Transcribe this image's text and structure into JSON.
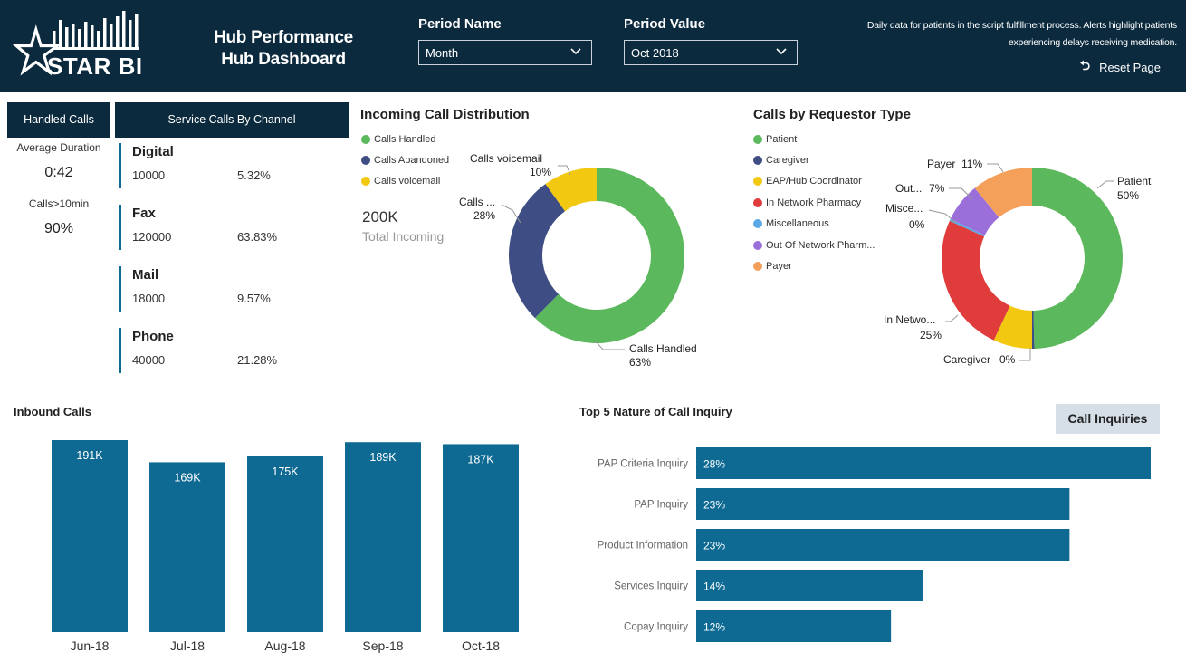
{
  "header": {
    "logo_text": "STAR BI",
    "title_line1": "Hub Performance",
    "title_line2": "Hub Dashboard",
    "period_name_label": "Period Name",
    "period_name_value": "Month",
    "period_value_label": "Period Value",
    "period_value_value": "Oct 2018",
    "note_line1": "Daily data for patients in the script fulfillment process. Alerts highlight patients",
    "note_line2": "experiencing delays receiving medication.",
    "reset_label": "Reset Page",
    "colors": {
      "bg": "#0c2a3e"
    }
  },
  "handled": {
    "title": "Handled Calls",
    "avg_label": "Average Duration",
    "avg_value": "0:42",
    "over_label": "Calls>10min",
    "over_value": "90%"
  },
  "service": {
    "title": "Service Calls By Channel",
    "channels": [
      {
        "name": "Digital",
        "count": "10000",
        "pct": "5.32%"
      },
      {
        "name": "Fax",
        "count": "120000",
        "pct": "63.83%"
      },
      {
        "name": "Mail",
        "count": "18000",
        "pct": "9.57%"
      },
      {
        "name": "Phone",
        "count": "40000",
        "pct": "21.28%"
      }
    ]
  },
  "incoming": {
    "total_value": "200K",
    "total_label": "Total Incoming"
  },
  "call_inquiries_button": "Call Inquiries",
  "chart_data": [
    {
      "type": "pie",
      "title": "Incoming Call Distribution",
      "donut": true,
      "categories": [
        "Calls Handled",
        "Calls Abandoned",
        "Calls voicemail"
      ],
      "values": [
        63,
        28,
        10
      ],
      "colors": [
        "#5cb85c",
        "#3e4e84",
        "#f2c811"
      ],
      "data_labels": [
        {
          "name": "Calls Handled",
          "pct": "63%"
        },
        {
          "name": "Calls ...",
          "pct": "28%"
        },
        {
          "name": "Calls voicemail",
          "pct": "10%"
        }
      ]
    },
    {
      "type": "pie",
      "title": "Calls by Requestor Type",
      "donut": true,
      "categories": [
        "Patient",
        "Caregiver",
        "EAP/Hub Coordinator",
        "In Network Pharmacy",
        "Miscellaneous",
        "Out Of Network Pharm...",
        "Payer"
      ],
      "values": [
        50,
        0.4,
        7,
        25,
        0.4,
        7,
        11
      ],
      "colors": [
        "#5cb85c",
        "#3e4e84",
        "#f2c811",
        "#e03c3c",
        "#5aa9e6",
        "#9b6fd9",
        "#f5a05a"
      ],
      "data_labels": [
        {
          "name": "Patient",
          "pct": "50%"
        },
        {
          "name": "Caregiver",
          "pct": "0%"
        },
        {
          "name": "In Netwo...",
          "pct": "25%"
        },
        {
          "name": "Misce...",
          "pct": "0%"
        },
        {
          "name": "Out...",
          "pct": "7%"
        },
        {
          "name": "Payer",
          "pct": "11%"
        }
      ]
    },
    {
      "type": "bar",
      "title": "Inbound Calls",
      "categories": [
        "Jun-18",
        "Jul-18",
        "Aug-18",
        "Sep-18",
        "Oct-18"
      ],
      "values": [
        191,
        169,
        175,
        189,
        187
      ],
      "value_labels": [
        "191K",
        "169K",
        "175K",
        "189K",
        "187K"
      ],
      "ylim": [
        0,
        191
      ],
      "color": "#0e6a93"
    },
    {
      "type": "bar",
      "orientation": "horizontal",
      "title": "Top 5 Nature of Call Inquiry",
      "categories": [
        "PAP Criteria Inquiry",
        "PAP Inquiry",
        "Product Information",
        "Services Inquiry",
        "Copay Inquiry"
      ],
      "values": [
        28,
        23,
        23,
        14,
        12
      ],
      "value_labels": [
        "28%",
        "23%",
        "23%",
        "14%",
        "12%"
      ],
      "xlim": [
        0,
        28
      ],
      "color": "#0e6a93"
    }
  ]
}
